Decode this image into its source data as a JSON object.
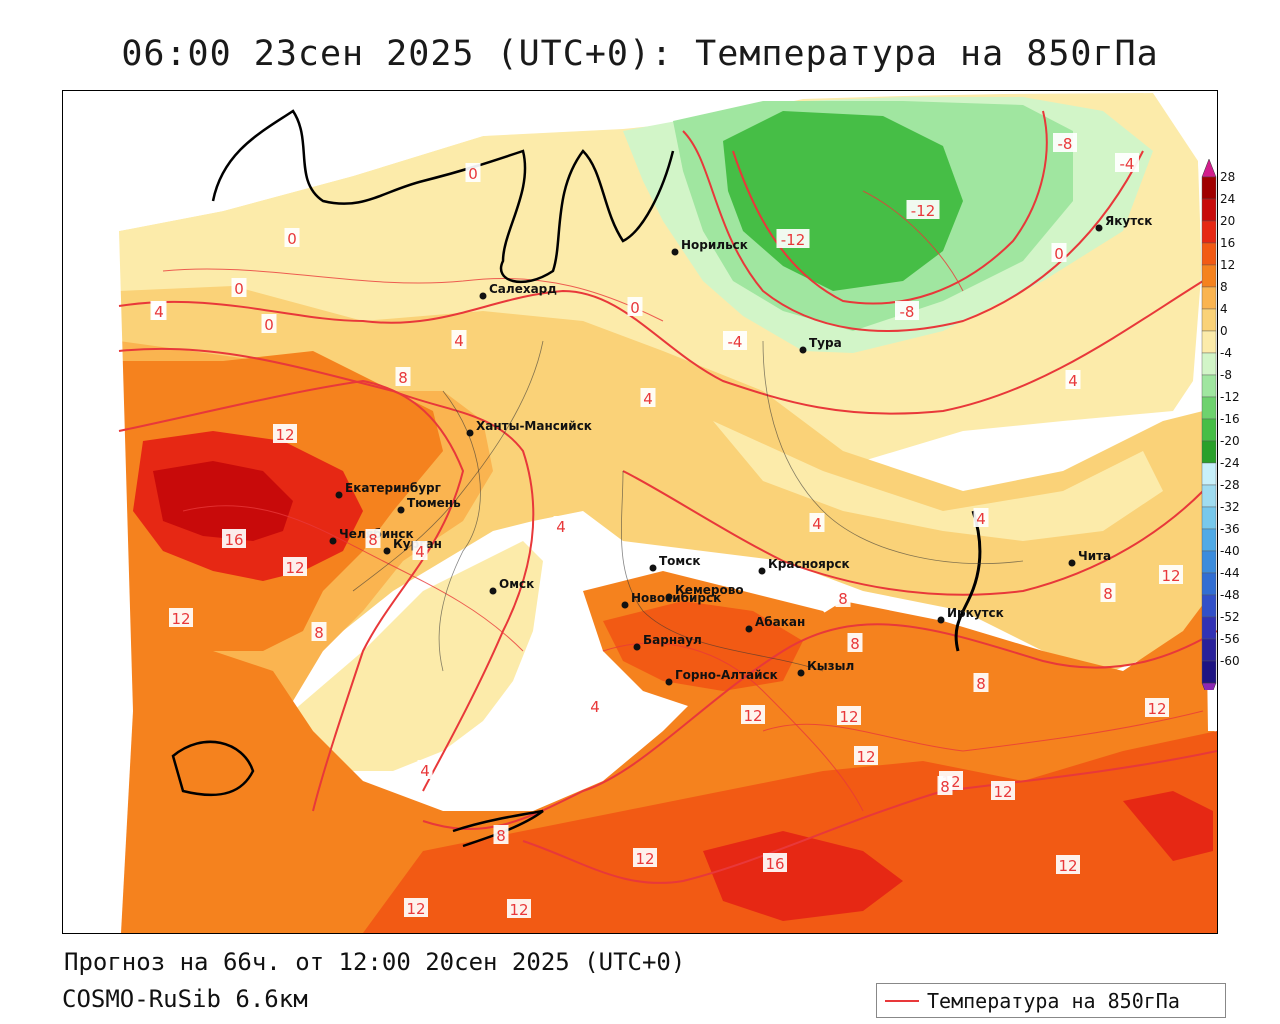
{
  "header": {
    "title": "06:00 23сен 2025 (UTC+0): Температура на 850гПа"
  },
  "footer": {
    "forecast": "Прогноз на 66ч. от 12:00 20сен 2025 (UTC+0)",
    "model": "COSMO-RuSib 6.6км"
  },
  "legend": {
    "label": "Температура на 850гПа",
    "line_color": "#e8383a"
  },
  "map": {
    "variable": "Температура на 850гПа",
    "contour_color": "#e8383a",
    "cities": [
      {
        "name": "Норильск"
      },
      {
        "name": "Якутск"
      },
      {
        "name": "Салехард"
      },
      {
        "name": "Тура"
      },
      {
        "name": "Ханты-Мансийск"
      },
      {
        "name": "Екатеринбург"
      },
      {
        "name": "Тюмень"
      },
      {
        "name": "Челябинск"
      },
      {
        "name": "Курган"
      },
      {
        "name": "Омск"
      },
      {
        "name": "Томск"
      },
      {
        "name": "Красноярск"
      },
      {
        "name": "Новосибирск"
      },
      {
        "name": "Кемерово"
      },
      {
        "name": "Абакан"
      },
      {
        "name": "Барнаул"
      },
      {
        "name": "Горно-Алтайск"
      },
      {
        "name": "Кызыл"
      },
      {
        "name": "Иркутск"
      },
      {
        "name": "Чита"
      }
    ],
    "contour_labels": [
      "4",
      "-8",
      "-4",
      "0",
      "0",
      "-12",
      "-12",
      "0",
      "-8",
      "0",
      "0",
      "4",
      "0",
      "-4",
      "4",
      "8",
      "4",
      "4",
      "12",
      "4",
      "4",
      "16",
      "8",
      "4",
      "12",
      "4",
      "12",
      "8",
      "12",
      "8",
      "8",
      "8",
      "8",
      "12",
      "12",
      "12",
      "12",
      "8",
      "4",
      "12",
      "12",
      "12",
      "16",
      "12",
      "12",
      "12",
      "4",
      "8"
    ]
  },
  "colorbar": {
    "ticks": [
      "28",
      "24",
      "20",
      "16",
      "12",
      "8",
      "4",
      "0",
      "-4",
      "-8",
      "-12",
      "-16",
      "-20",
      "-24",
      "-28",
      "-32",
      "-36",
      "-40",
      "-44",
      "-48",
      "-52",
      "-56",
      "-60"
    ],
    "colors": [
      "#a00000",
      "#c80a0a",
      "#e62814",
      "#f25a14",
      "#f5821e",
      "#fab450",
      "#fad278",
      "#fcebaa",
      "#d2f5c8",
      "#a0e6a0",
      "#6ed26e",
      "#46be46",
      "#2aa02a",
      "#c8f0fa",
      "#a0dcf0",
      "#78c8eb",
      "#50aae6",
      "#3c8cdc",
      "#326ed2",
      "#3250c8",
      "#3232b4",
      "#28209a",
      "#1e1482"
    ],
    "top_arrow_color": "#d21e8c",
    "bottom_arrow_color": "#8c28b4"
  }
}
